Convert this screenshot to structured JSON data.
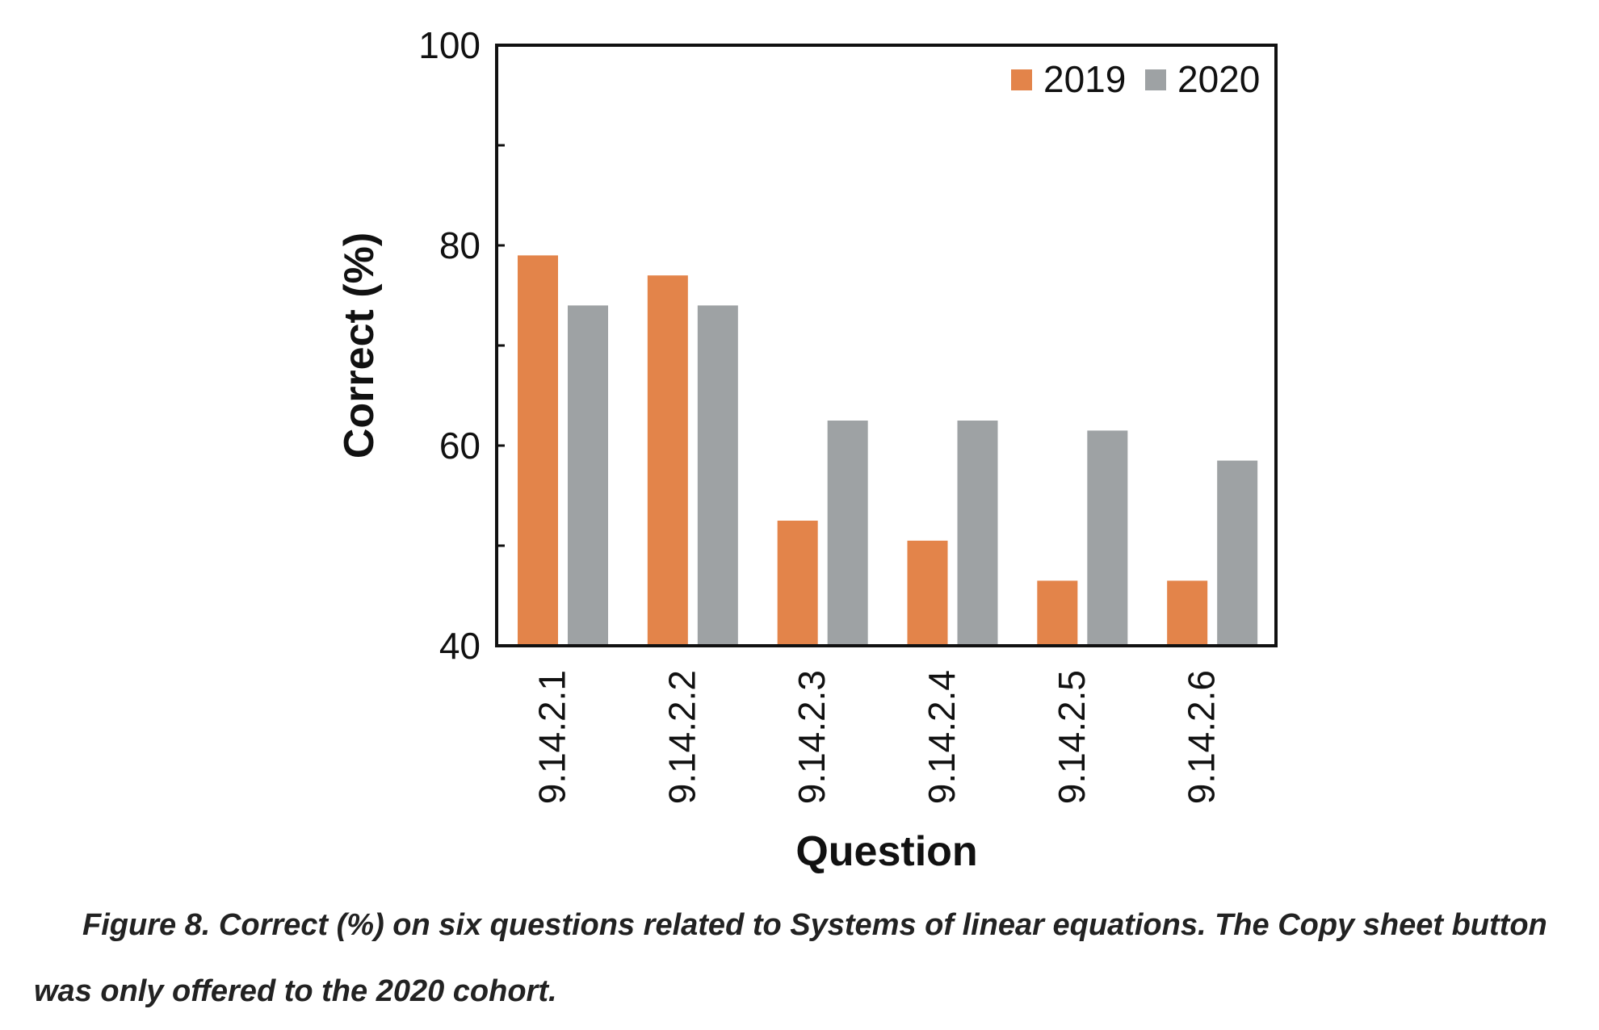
{
  "chart_data": {
    "type": "bar",
    "categories": [
      "9.14.2.1",
      "9.14.2.2",
      "9.14.2.3",
      "9.14.2.4",
      "9.14.2.5",
      "9.14.2.6"
    ],
    "series": [
      {
        "name": "2019",
        "color": "#e3844a",
        "values": [
          79,
          77,
          52.5,
          50.5,
          46.5,
          46.5
        ]
      },
      {
        "name": "2020",
        "color": "#9ea2a4",
        "values": [
          74,
          74,
          62.5,
          62.5,
          61.5,
          58.5
        ]
      }
    ],
    "xlabel": "Question",
    "ylabel": "Correct (%)",
    "ylim": [
      40,
      100
    ],
    "yticks": [
      40,
      60,
      80,
      100
    ],
    "y_minor_ticks": [
      50,
      70,
      90
    ],
    "grid": false,
    "legend_position": "top-right"
  },
  "caption": "Figure 8. Correct (%) on six questions related to Systems of linear equations. The Copy sheet button was only offered to the 2020 cohort."
}
